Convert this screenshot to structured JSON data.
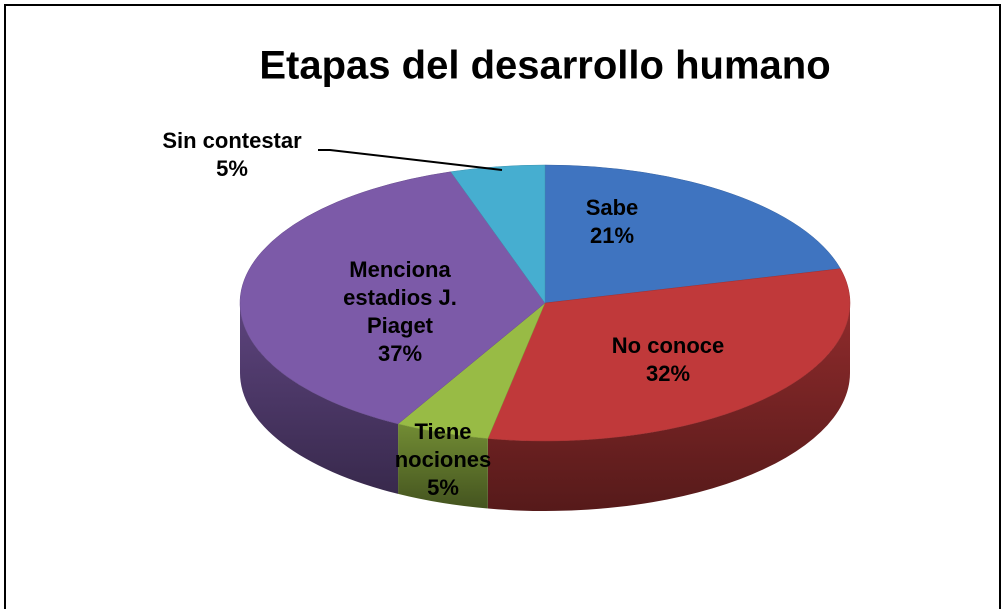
{
  "chart_data": {
    "type": "pie3d",
    "title": "Etapas del desarrollo humano",
    "categories": [
      "Sabe",
      "No conoce",
      "Tiene nociones",
      "Menciona estadios J. Piaget",
      "Sin contestar"
    ],
    "values": [
      21,
      32,
      5,
      37,
      5
    ],
    "value_labels": [
      "21%",
      "32%",
      "5%",
      "37%",
      "5%"
    ],
    "colors": [
      "#3f74c0",
      "#c0393a",
      "#98bb45",
      "#7c5aa8",
      "#46aed0"
    ]
  }
}
